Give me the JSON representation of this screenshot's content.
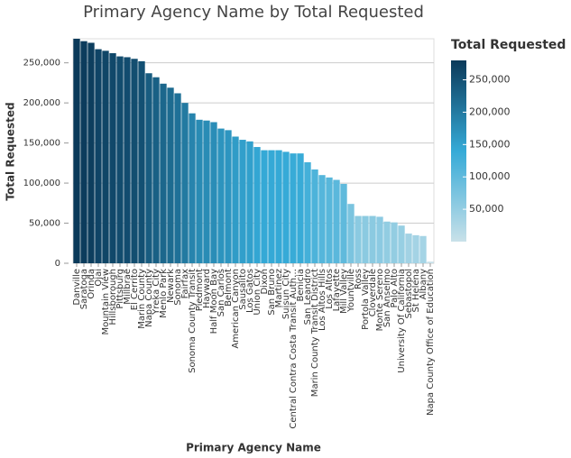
{
  "chart_data": {
    "type": "bar",
    "title": "Primary Agency Name by Total Requested",
    "x_label": "Primary Agency Name",
    "y_label": "Total Requested",
    "legend_title": "Total Requested",
    "categories": [
      "Danville",
      "Saratoga",
      "Orinda",
      "Ojai",
      "Mountain View",
      "Hillsborough",
      "Pittsburg",
      "Millbrae",
      "El Cerrito",
      "Marin County",
      "Napa County",
      "Yreka City",
      "Menlo Park",
      "Newark",
      "Sonoma",
      "Fairfax",
      "Sonoma County Transit",
      "Piedmont",
      "Hayward",
      "Half Moon Bay",
      "San Carlos",
      "Belmont",
      "American Canyon",
      "Sausalito",
      "Los Gatos",
      "Union City",
      "Dixon",
      "San Bruno",
      "Martinez",
      "Suisun City",
      "Central Contra Costa Transit Auth…",
      "Benicia",
      "San Leandro",
      "Marin County Transit District",
      "Los Altos Hills",
      "Los Altos",
      "Lafayette",
      "Mill Valley",
      "Yountville",
      "Ross",
      "Portola Valley",
      "Cloverdale",
      "Monte Sereno",
      "San Anselmo",
      "Palo Alto",
      "University Of California",
      "Sebastopol",
      "St Helena",
      "Albany",
      "Napa County Office of Education"
    ],
    "values": [
      280000,
      277000,
      275000,
      267000,
      265000,
      262000,
      258000,
      257000,
      255000,
      252000,
      237000,
      232000,
      224000,
      219000,
      212000,
      200000,
      187000,
      179000,
      178000,
      176000,
      168000,
      166000,
      158000,
      154000,
      152000,
      145000,
      141000,
      141000,
      141000,
      139000,
      137000,
      137000,
      126000,
      117000,
      110000,
      107000,
      104000,
      99000,
      74000,
      59000,
      59000,
      59000,
      58000,
      52000,
      51000,
      47000,
      37000,
      35000,
      34000,
      2000
    ],
    "ylim": [
      0,
      280000
    ],
    "yticks": [
      {
        "value": 0,
        "label": "0"
      },
      {
        "value": 50000,
        "label": "50,000"
      },
      {
        "value": 100000,
        "label": "100,000"
      },
      {
        "value": 150000,
        "label": "150,000"
      },
      {
        "value": 200000,
        "label": "200,000"
      },
      {
        "value": 250000,
        "label": "250,000"
      }
    ],
    "grid": true,
    "color_scale": [
      "#c9e1e9",
      "#35aad7",
      "#0b3a5a"
    ],
    "clim": [
      0,
      280000
    ],
    "cticks": [
      {
        "value": 50000,
        "label": "50,000"
      },
      {
        "value": 100000,
        "label": "100,000"
      },
      {
        "value": 150000,
        "label": "150,000"
      },
      {
        "value": 200000,
        "label": "200,000"
      },
      {
        "value": 250000,
        "label": "250,000"
      }
    ]
  }
}
